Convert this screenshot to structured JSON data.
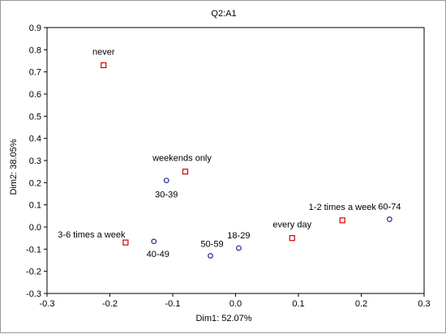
{
  "chart_data": {
    "type": "scatter",
    "title": "Q2:A1",
    "xlabel": "Dim1: 52.07%",
    "ylabel": "Dim2: 38.05%",
    "xlim": [
      -0.3,
      0.3
    ],
    "ylim": [
      -0.3,
      0.9
    ],
    "x_ticks": [
      "-0.3",
      "-0.2",
      "-0.1",
      "0.0",
      "0.1",
      "0.2",
      "0.3"
    ],
    "y_ticks": [
      "-0.3",
      "-0.2",
      "-0.1",
      "0.0",
      "0.1",
      "0.2",
      "0.3",
      "0.4",
      "0.5",
      "0.6",
      "0.7",
      "0.8",
      "0.9"
    ],
    "grid": false,
    "series": [
      {
        "marker": "square",
        "color": "#d00000",
        "points": [
          {
            "label": "never",
            "x": -0.21,
            "y": 0.73
          },
          {
            "label": "weekends only",
            "x": -0.08,
            "y": 0.25
          },
          {
            "label": "3-6 times a week",
            "x": -0.175,
            "y": -0.07
          },
          {
            "label": "every day",
            "x": 0.09,
            "y": -0.05
          },
          {
            "label": "1-2 times a week",
            "x": 0.17,
            "y": 0.03
          }
        ]
      },
      {
        "marker": "circle",
        "color": "#1f2a9c",
        "points": [
          {
            "label": "30-39",
            "x": -0.11,
            "y": 0.21
          },
          {
            "label": "40-49",
            "x": -0.13,
            "y": -0.065
          },
          {
            "label": "50-59",
            "x": -0.04,
            "y": -0.13
          },
          {
            "label": "18-29",
            "x": 0.005,
            "y": -0.095
          },
          {
            "label": "60-74",
            "x": 0.245,
            "y": 0.035
          }
        ]
      }
    ]
  }
}
